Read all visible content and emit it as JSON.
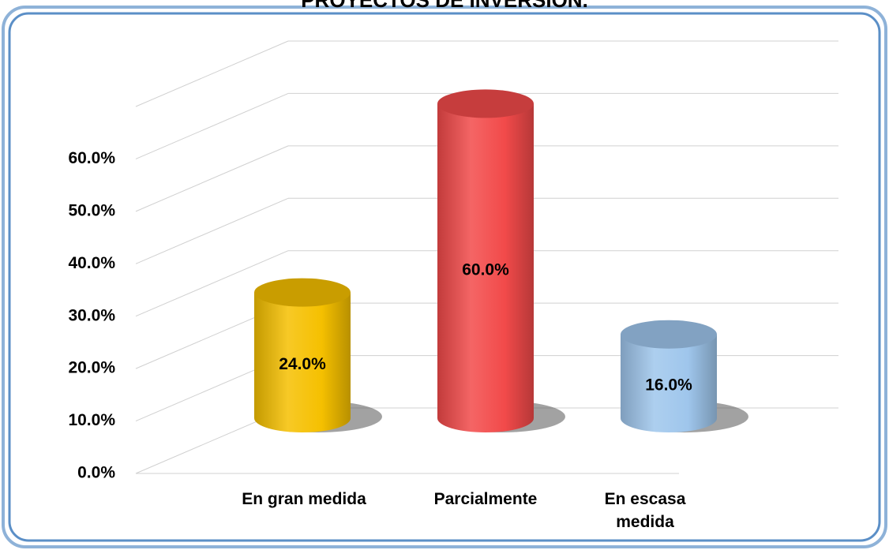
{
  "chart_data": {
    "type": "bar",
    "title": "PROYECTOS DE INVERSIÓN.",
    "categories": [
      "En gran medida",
      "Parcialmente",
      "En escasa medida"
    ],
    "values": [
      24,
      60,
      16
    ],
    "value_labels": [
      "24.0%",
      "60.0%",
      "16.0%"
    ],
    "colors": [
      "#f5c000",
      "#f24a4a",
      "#9fc6ec"
    ],
    "ylim": [
      0,
      70
    ],
    "yticks": [
      {
        "value": 0,
        "label": "0.0%"
      },
      {
        "value": 10,
        "label": "10.0%"
      },
      {
        "value": 20,
        "label": "20.0%"
      },
      {
        "value": 30,
        "label": "30.0%"
      },
      {
        "value": 40,
        "label": "40.0%"
      },
      {
        "value": 50,
        "label": "50.0%"
      },
      {
        "value": 60,
        "label": "60.0%"
      }
    ],
    "grid": true
  }
}
